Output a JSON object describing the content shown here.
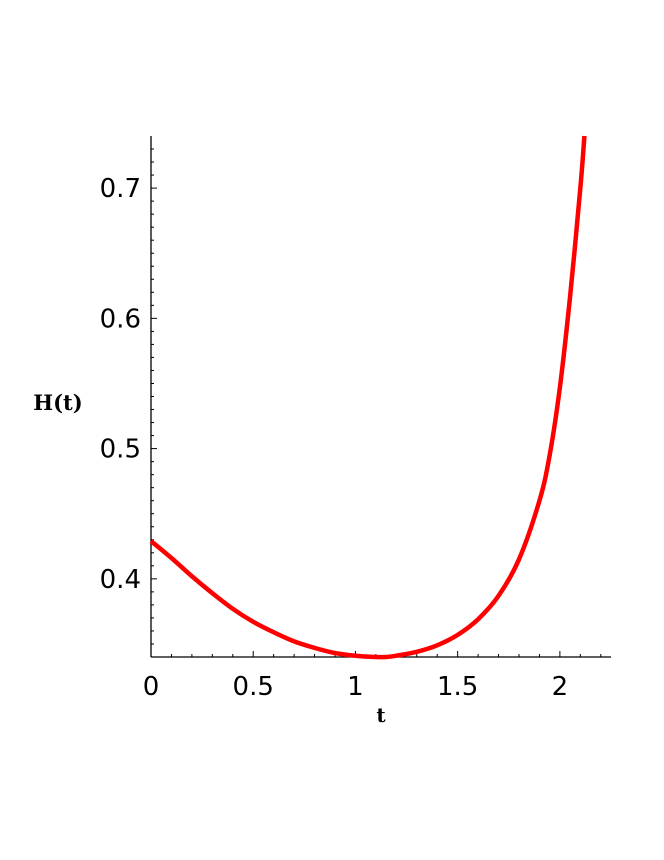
{
  "chart_data": {
    "type": "line",
    "title": "",
    "xlabel": "t",
    "ylabel": "H(t)",
    "xlim": [
      0,
      2.25
    ],
    "ylim": [
      0.34,
      0.74
    ],
    "x_ticks": [
      0,
      0.5,
      1,
      1.5,
      2
    ],
    "x_tick_labels": [
      "0",
      "0.5",
      "1",
      "1.5",
      "2"
    ],
    "y_ticks": [
      0.4,
      0.5,
      0.6,
      0.7
    ],
    "y_tick_labels": [
      "0.4",
      "0.5",
      "0.6",
      "0.7"
    ],
    "grid": false,
    "legend": "none",
    "series": [
      {
        "color": "#ff0000",
        "x": [
          0,
          0.1,
          0.2,
          0.3,
          0.4,
          0.5,
          0.6,
          0.7,
          0.8,
          0.9,
          1.0,
          1.1,
          1.15,
          1.2,
          1.3,
          1.4,
          1.5,
          1.6,
          1.7,
          1.8,
          1.9,
          1.95,
          2.0,
          2.05,
          2.1,
          2.12
        ],
        "y": [
          0.429,
          0.416,
          0.402,
          0.389,
          0.377,
          0.367,
          0.359,
          0.352,
          0.347,
          0.343,
          0.341,
          0.34,
          0.34,
          0.341,
          0.344,
          0.349,
          0.357,
          0.369,
          0.387,
          0.415,
          0.46,
          0.495,
          0.547,
          0.617,
          0.7,
          0.74
        ]
      }
    ]
  }
}
